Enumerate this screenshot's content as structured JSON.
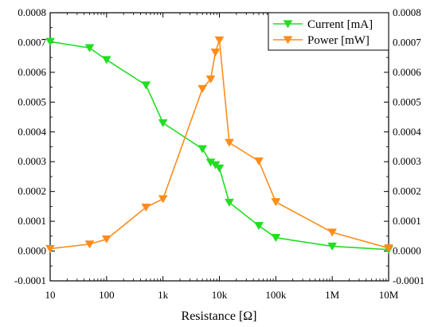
{
  "chart_data": {
    "type": "line",
    "xlabel": "Resistance [Ω]",
    "ylabel": "",
    "y2label": "",
    "xscale": "log",
    "xlim": [
      10,
      10000000
    ],
    "ylim": [
      -0.0001,
      0.0008
    ],
    "y2lim": [
      -0.0001,
      0.0008
    ],
    "x_ticks": [
      10,
      100,
      1000,
      10000,
      100000,
      1000000,
      10000000
    ],
    "x_tick_labels": [
      "10",
      "100",
      "1k",
      "10k",
      "100k",
      "1M",
      "10M"
    ],
    "y_ticks": [
      -0.0001,
      0,
      0.0001,
      0.0002,
      0.0003,
      0.0004,
      0.0005,
      0.0006,
      0.0007,
      0.0008
    ],
    "y_tick_labels": [
      "-0.0001",
      "0.0000",
      "0.0001",
      "0.0002",
      "0.0003",
      "0.0004",
      "0.0005",
      "0.0006",
      "0.0007",
      "0.0008"
    ],
    "grid": false,
    "legend_position": "top-right",
    "series": [
      {
        "name": "Current [mA]",
        "color": "#22dd22",
        "marker": "triangle-down",
        "axis": "left",
        "x": [
          10,
          50,
          100,
          500,
          1000,
          5000,
          7000,
          8500,
          10000,
          15000,
          50000,
          100000,
          1000000,
          10000000
        ],
        "y": [
          0.000703,
          0.000682,
          0.000642,
          0.000557,
          0.00043,
          0.000343,
          0.000298,
          0.000289,
          0.000278,
          0.000163,
          8.5e-05,
          4.5e-05,
          1.6e-05,
          5e-06
        ]
      },
      {
        "name": "Power [mW]",
        "color": "#ff8c1a",
        "marker": "triangle-down",
        "axis": "right",
        "x": [
          10,
          50,
          100,
          500,
          1000,
          5000,
          7000,
          8500,
          10000,
          15000,
          50000,
          100000,
          1000000,
          10000000
        ],
        "y": [
          8e-06,
          2.3e-05,
          4e-05,
          0.000147,
          0.000175,
          0.000545,
          0.000577,
          0.000667,
          0.000708,
          0.000364,
          0.000302,
          0.000165,
          6.3e-05,
          1e-05
        ]
      }
    ]
  }
}
